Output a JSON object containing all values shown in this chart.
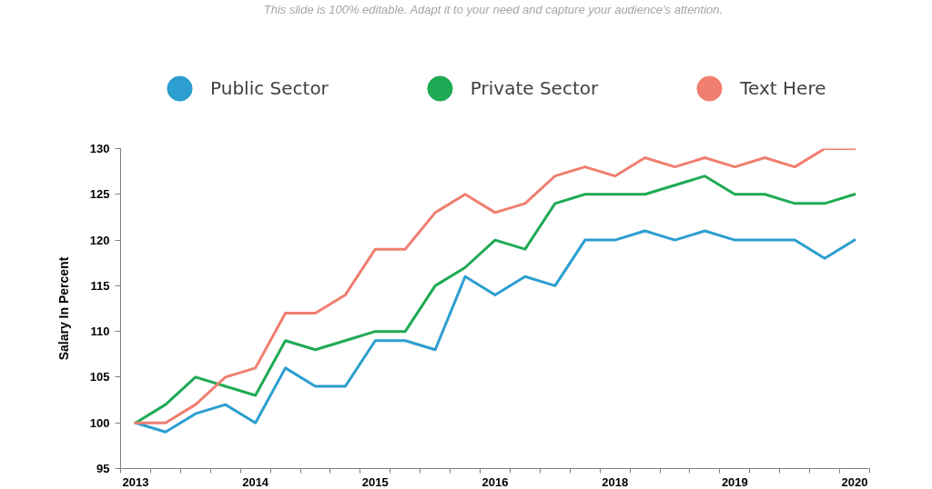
{
  "chart_data": {
    "type": "line",
    "subtitle": "This slide is 100% editable. Adapt it to your need and capture  your audience’s attention.",
    "ylabel": "Salary In Percent",
    "categories": [
      "2013",
      null,
      null,
      null,
      "2014",
      null,
      null,
      null,
      "2015",
      null,
      null,
      null,
      "2016",
      null,
      null,
      null,
      "2018",
      null,
      null,
      null,
      "2019",
      null,
      null,
      null,
      "2020"
    ],
    "series": [
      {
        "name": "Public Sector",
        "color": "#2c9ecf",
        "values": [
          100,
          99,
          101,
          102,
          100,
          106,
          104,
          104,
          109,
          109,
          108,
          116,
          114,
          116,
          115,
          120,
          120,
          121,
          120,
          121,
          120,
          120,
          120,
          118,
          120
        ]
      },
      {
        "name": "Private Sector",
        "color": "#1faa55",
        "values": [
          100,
          102,
          105,
          104,
          103,
          109,
          108,
          109,
          110,
          110,
          115,
          117,
          120,
          119,
          124,
          125,
          125,
          125,
          126,
          127,
          125,
          125,
          124,
          124,
          125
        ]
      },
      {
        "name": "Text Here",
        "color": "#f07f70",
        "values": [
          100,
          100,
          102,
          105,
          106,
          112,
          112,
          114,
          119,
          119,
          123,
          125,
          123,
          124,
          127,
          128,
          127,
          129,
          128,
          129,
          128,
          129,
          128,
          130,
          130
        ]
      }
    ],
    "ylim": [
      95,
      130
    ],
    "yticks": [
      95,
      100,
      105,
      110,
      115,
      120,
      125,
      130
    ],
    "legend": "top",
    "marker": "none",
    "line_style": "solid"
  }
}
